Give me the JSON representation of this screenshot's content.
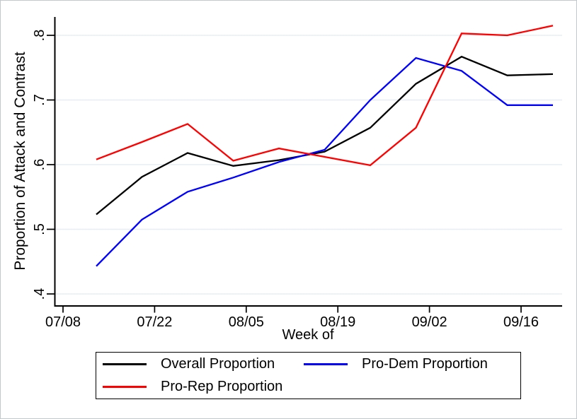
{
  "figure": {
    "background": "#ffffff",
    "border_color": "#c3c8cc"
  },
  "chart_data": {
    "type": "line",
    "title": "",
    "xlabel": "Week of",
    "ylabel": "Proportion of Attack and Contrast",
    "x": [
      "07/13",
      "07/20",
      "07/27",
      "08/03",
      "08/10",
      "08/17",
      "08/24",
      "08/31",
      "09/07",
      "09/14",
      "09/21"
    ],
    "series": [
      {
        "name": "Overall Proportion",
        "color": "#000000",
        "values": [
          0.523,
          0.581,
          0.618,
          0.598,
          0.607,
          0.62,
          0.657,
          0.725,
          0.767,
          0.738,
          0.74
        ]
      },
      {
        "name": "Pro-Dem Proportion",
        "color": "#0000ff",
        "values": [
          0.443,
          0.515,
          0.558,
          0.58,
          0.604,
          0.623,
          0.7,
          0.765,
          0.745,
          0.692,
          0.692
        ]
      },
      {
        "name": "Pro-Rep Proportion",
        "color": "#ff0000",
        "values": [
          0.608,
          0.635,
          0.663,
          0.606,
          0.625,
          0.612,
          0.599,
          0.657,
          0.803,
          0.8,
          0.815
        ]
      }
    ],
    "ylim": [
      0.4,
      0.825
    ],
    "yticks": {
      "values": [
        0.4,
        0.5,
        0.6,
        0.7,
        0.8
      ],
      "labels": [
        ".4",
        ".5",
        ".6",
        ".7",
        ".8"
      ]
    },
    "xticks": {
      "labels": [
        "07/08",
        "07/22",
        "08/05",
        "08/19",
        "09/02",
        "09/16"
      ]
    },
    "grid": true,
    "gridline_color": "#e7eef3",
    "axis_color": "#000000",
    "legend_position": "bottom"
  },
  "legend": {
    "items": [
      {
        "label": "Overall Proportion",
        "color": "#000000"
      },
      {
        "label": "Pro-Dem Proportion",
        "color": "#0000ff"
      },
      {
        "label": "Pro-Rep Proportion",
        "color": "#ff0000"
      }
    ]
  }
}
